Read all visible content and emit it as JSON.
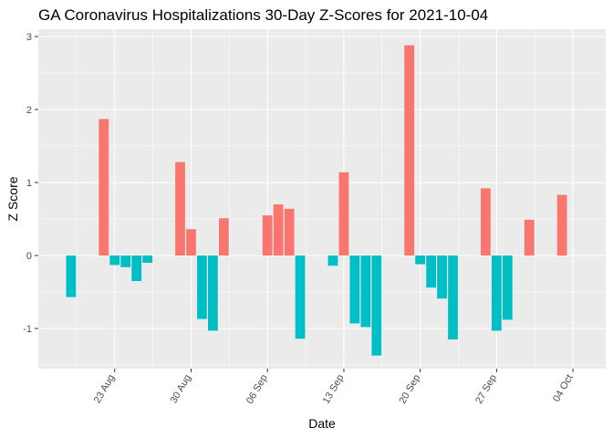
{
  "chart_data": {
    "type": "bar",
    "title": "GA Coronavirus Hospitalizations 30-Day Z-Scores for 2021-10-04",
    "xlabel": "Date",
    "ylabel": "Z Score",
    "ylim": [
      -1.55,
      3.1
    ],
    "yticks": [
      -1,
      0,
      1,
      2,
      3
    ],
    "xlim": [
      "2021-08-16",
      "2021-10-07"
    ],
    "xticks": [
      {
        "date": "2021-08-23",
        "label": "23 Aug"
      },
      {
        "date": "2021-08-30",
        "label": "30 Aug"
      },
      {
        "date": "2021-09-06",
        "label": "06 Sep"
      },
      {
        "date": "2021-09-13",
        "label": "13 Sep"
      },
      {
        "date": "2021-09-20",
        "label": "20 Sep"
      },
      {
        "date": "2021-09-27",
        "label": "27 Sep"
      },
      {
        "date": "2021-10-04",
        "label": "04 Oct"
      }
    ],
    "grid": true,
    "legend": "none",
    "colors": {
      "positive": "#F8766D",
      "negative": "#00BFC4",
      "panel": "#EBEBEB",
      "grid": "#FFFFFF"
    },
    "points": [
      {
        "date": "2021-08-19",
        "value": -0.57
      },
      {
        "date": "2021-08-22",
        "value": 1.87
      },
      {
        "date": "2021-08-23",
        "value": -0.13
      },
      {
        "date": "2021-08-24",
        "value": -0.16
      },
      {
        "date": "2021-08-25",
        "value": -0.35
      },
      {
        "date": "2021-08-26",
        "value": -0.1
      },
      {
        "date": "2021-08-29",
        "value": 1.28
      },
      {
        "date": "2021-08-30",
        "value": 0.36
      },
      {
        "date": "2021-08-31",
        "value": -0.87
      },
      {
        "date": "2021-09-01",
        "value": -1.03
      },
      {
        "date": "2021-09-02",
        "value": 0.51
      },
      {
        "date": "2021-09-06",
        "value": 0.55
      },
      {
        "date": "2021-09-07",
        "value": 0.7
      },
      {
        "date": "2021-09-08",
        "value": 0.64
      },
      {
        "date": "2021-09-09",
        "value": -1.14
      },
      {
        "date": "2021-09-12",
        "value": -0.14
      },
      {
        "date": "2021-09-13",
        "value": 1.14
      },
      {
        "date": "2021-09-14",
        "value": -0.93
      },
      {
        "date": "2021-09-15",
        "value": -0.98
      },
      {
        "date": "2021-09-16",
        "value": -1.37
      },
      {
        "date": "2021-09-19",
        "value": 2.88
      },
      {
        "date": "2021-09-20",
        "value": -0.12
      },
      {
        "date": "2021-09-21",
        "value": -0.44
      },
      {
        "date": "2021-09-22",
        "value": -0.59
      },
      {
        "date": "2021-09-23",
        "value": -1.15
      },
      {
        "date": "2021-09-26",
        "value": 0.92
      },
      {
        "date": "2021-09-27",
        "value": -1.03
      },
      {
        "date": "2021-09-28",
        "value": -0.88
      },
      {
        "date": "2021-09-30",
        "value": 0.49
      },
      {
        "date": "2021-10-03",
        "value": 0.83
      }
    ]
  }
}
